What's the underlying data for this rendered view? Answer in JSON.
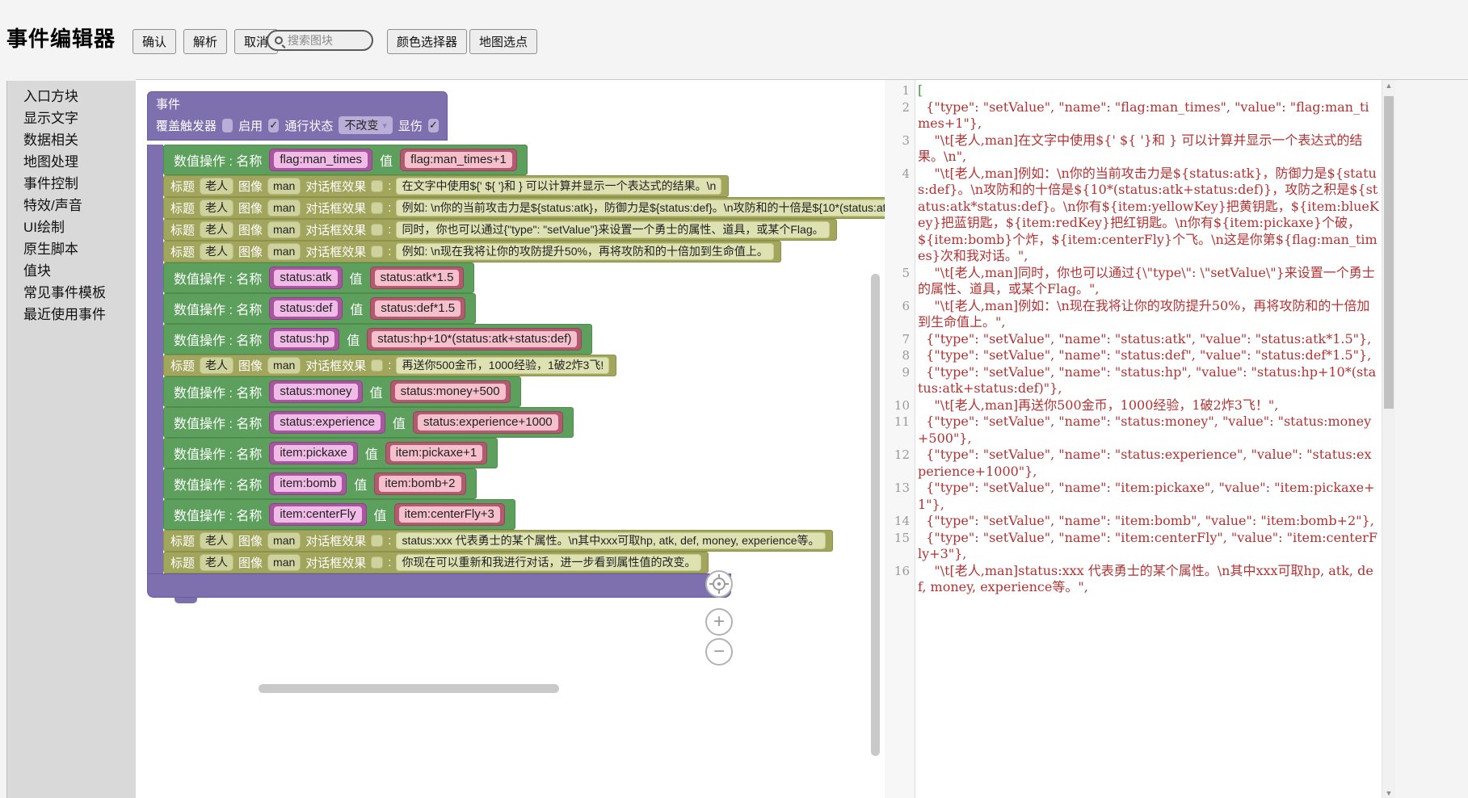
{
  "header": {
    "title": "事件编辑器"
  },
  "toolbar": {
    "confirm": "确认",
    "parse": "解析",
    "cancel": "取消",
    "search_placeholder": "搜索图块",
    "color_picker": "颜色选择器",
    "map_pick": "地图选点"
  },
  "icons": {
    "check": "✓",
    "dropdown_arrow": "▾",
    "plus": "+",
    "minus": "−",
    "scroll_up": "▲",
    "scroll_down": "▼"
  },
  "sidebar": {
    "items": [
      "入口方块",
      "显示文字",
      "数据相关",
      "地图处理",
      "事件控制",
      "特效/声音",
      "UI绘制",
      "原生脚本",
      "值块",
      "常见事件模板",
      "最近使用事件"
    ]
  },
  "event_block": {
    "title": "事件",
    "settings": [
      {
        "label": "覆盖触发器",
        "type": "checkbox",
        "checked": false
      },
      {
        "label": "启用",
        "type": "checkbox",
        "checked": true
      },
      {
        "label": "通行状态",
        "type": "dropdown",
        "value": "不改变"
      },
      {
        "label": "显伤",
        "type": "checkbox",
        "checked": true
      }
    ],
    "set_label": "数值操作 : 名称",
    "value_label": "值",
    "dialog_labels": {
      "title": "标题",
      "title_value": "老人",
      "image": "图像",
      "image_value": "man",
      "effect": "对话框效果",
      "colon": ":"
    },
    "rows": [
      {
        "kind": "set",
        "name": "flag:man_times",
        "value": "flag:man_times+1"
      },
      {
        "kind": "dialog",
        "text": "在文字中使用${' ${ '}和 } 可以计算并显示一个表达式的结果。\\n"
      },
      {
        "kind": "dialog",
        "text": "例如: \\n你的当前攻击力是${status:atk}，防御力是${status:def}。\\n攻防和的十倍是${10*(status:atk+status:def)}，攻防之积是${status:atk*status:def}。"
      },
      {
        "kind": "dialog",
        "text": "同时，你也可以通过{\"type\": \"setValue\"}来设置一个勇士的属性、道具，或某个Flag。"
      },
      {
        "kind": "dialog",
        "text": "例如: \\n现在我将让你的攻防提升50%，再将攻防和的十倍加到生命值上。"
      },
      {
        "kind": "set",
        "name": "status:atk",
        "value": "status:atk*1.5"
      },
      {
        "kind": "set",
        "name": "status:def",
        "value": "status:def*1.5"
      },
      {
        "kind": "set",
        "name": "status:hp",
        "value": "status:hp+10*(status:atk+status:def)"
      },
      {
        "kind": "dialog",
        "text": "再送你500金币，1000经验，1破2炸3飞!"
      },
      {
        "kind": "set",
        "name": "status:money",
        "value": "status:money+500"
      },
      {
        "kind": "set",
        "name": "status:experience",
        "value": "status:experience+1000"
      },
      {
        "kind": "set",
        "name": "item:pickaxe",
        "value": "item:pickaxe+1"
      },
      {
        "kind": "set",
        "name": "item:bomb",
        "value": "item:bomb+2"
      },
      {
        "kind": "set",
        "name": "item:centerFly",
        "value": "item:centerFly+3"
      },
      {
        "kind": "dialog",
        "text": "status:xxx 代表勇士的某个属性。\\n其中xxx可取hp, atk, def, money, experience等。"
      },
      {
        "kind": "dialog",
        "text": "你现在可以重新和我进行对话，进一步看到属性值的改变。"
      }
    ]
  },
  "code": {
    "lines": [
      {
        "no": 1,
        "kind": "bracket",
        "text": "["
      },
      {
        "no": 2,
        "kind": "normal",
        "text": "  {\"type\": \"setValue\", \"name\": \"flag:man_times\", \"value\": \"flag:man_times+1\"},"
      },
      {
        "no": 3,
        "kind": "normal",
        "text": "    \"\\t[老人,man]在文字中使用${' ${ '}和 } 可以计算并显示一个表达式的结果。\\n\","
      },
      {
        "no": 4,
        "kind": "normal",
        "text": "    \"\\t[老人,man]例如：\\n你的当前攻击力是${status:atk}，防御力是${status:def}。\\n攻防和的十倍是${10*(status:atk+status:def)}，攻防之积是${status:atk*status:def}。\\n你有${item:yellowKey}把黄钥匙，${item:blueKey}把蓝钥匙，${item:redKey}把红钥匙。\\n你有${item:pickaxe}个破，${item:bomb}个炸，${item:centerFly}个飞。\\n这是你第${flag:man_times}次和我对话。\","
      },
      {
        "no": 5,
        "kind": "normal",
        "text": "    \"\\t[老人,man]同时，你也可以通过{\\\"type\\\": \\\"setValue\\\"}来设置一个勇士的属性、道具，或某个Flag。\","
      },
      {
        "no": 6,
        "kind": "normal",
        "text": "    \"\\t[老人,man]例如：\\n现在我将让你的攻防提升50%，再将攻防和的十倍加到生命值上。\","
      },
      {
        "no": 7,
        "kind": "normal",
        "text": "  {\"type\": \"setValue\", \"name\": \"status:atk\", \"value\": \"status:atk*1.5\"},"
      },
      {
        "no": 8,
        "kind": "normal",
        "text": "  {\"type\": \"setValue\", \"name\": \"status:def\", \"value\": \"status:def*1.5\"},"
      },
      {
        "no": 9,
        "kind": "normal",
        "text": "  {\"type\": \"setValue\", \"name\": \"status:hp\", \"value\": \"status:hp+10*(status:atk+status:def)\"},"
      },
      {
        "no": 10,
        "kind": "normal",
        "text": "    \"\\t[老人,man]再送你500金币，1000经验，1破2炸3飞！\","
      },
      {
        "no": 11,
        "kind": "normal",
        "text": "  {\"type\": \"setValue\", \"name\": \"status:money\", \"value\": \"status:money+500\"},"
      },
      {
        "no": 12,
        "kind": "normal",
        "text": "  {\"type\": \"setValue\", \"name\": \"status:experience\", \"value\": \"status:experience+1000\"},"
      },
      {
        "no": 13,
        "kind": "normal",
        "text": "  {\"type\": \"setValue\", \"name\": \"item:pickaxe\", \"value\": \"item:pickaxe+1\"},"
      },
      {
        "no": 14,
        "kind": "normal",
        "text": "  {\"type\": \"setValue\", \"name\": \"item:bomb\", \"value\": \"item:bomb+2\"},"
      },
      {
        "no": 15,
        "kind": "normal",
        "text": "  {\"type\": \"setValue\", \"name\": \"item:centerFly\", \"value\": \"item:centerFly+3\"},"
      },
      {
        "no": 16,
        "kind": "normal",
        "text": "    \"\\t[老人,man]status:xxx 代表勇士的某个属性。\\n其中xxx可取hp, atk, def, money, experience等。\","
      }
    ]
  },
  "colors": {
    "block_purple": "#7e70ae",
    "block_green": "#5da05d",
    "block_olive": "#a2a65c",
    "chip_magenta": "#a8569f",
    "chip_rose": "#b25a70",
    "code_text": "#b23333",
    "code_bracket": "#3f9b3f"
  }
}
